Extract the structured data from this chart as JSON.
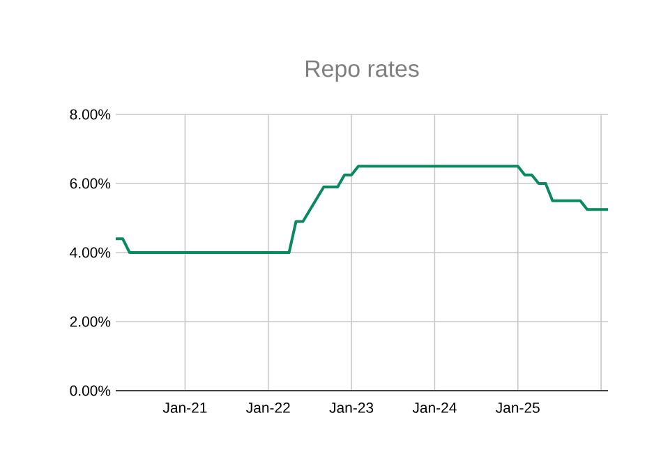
{
  "chart_data": {
    "type": "line",
    "title": "Repo rates",
    "series": [
      {
        "color": "#0a8a5c",
        "x": [
          "2020-03",
          "2020-04",
          "2020-05",
          "2022-04",
          "2022-05",
          "2022-06",
          "2022-09",
          "2022-11",
          "2022-12",
          "2023-01",
          "2023-02",
          "2025-01",
          "2025-02",
          "2025-03",
          "2025-04",
          "2025-05",
          "2025-06",
          "2025-10",
          "2025-11",
          "2026-02"
        ],
        "values": [
          4.4,
          4.4,
          4.0,
          4.0,
          4.9,
          4.9,
          5.9,
          5.9,
          6.25,
          6.25,
          6.5,
          6.5,
          6.25,
          6.25,
          6.0,
          6.0,
          5.5,
          5.5,
          5.25,
          5.25
        ]
      }
    ],
    "xlim": [
      "2020-03",
      "2026-02"
    ],
    "xticks": [
      {
        "value": "2021-01",
        "label": "Jan-21"
      },
      {
        "value": "2022-01",
        "label": "Jan-22"
      },
      {
        "value": "2023-01",
        "label": "Jan-23"
      },
      {
        "value": "2024-01",
        "label": "Jan-24"
      },
      {
        "value": "2025-01",
        "label": "Jan-25"
      },
      {
        "value": "2026-01",
        "label": null
      }
    ],
    "ylim": [
      0,
      8
    ],
    "yticks": [
      {
        "value": 0,
        "label": "0.00%"
      },
      {
        "value": 2,
        "label": "2.00%"
      },
      {
        "value": 4,
        "label": "4.00%"
      },
      {
        "value": 6,
        "label": "6.00%"
      },
      {
        "value": 8,
        "label": "8.00%"
      }
    ],
    "grid": true,
    "marker": "none",
    "line_style": "solid"
  }
}
